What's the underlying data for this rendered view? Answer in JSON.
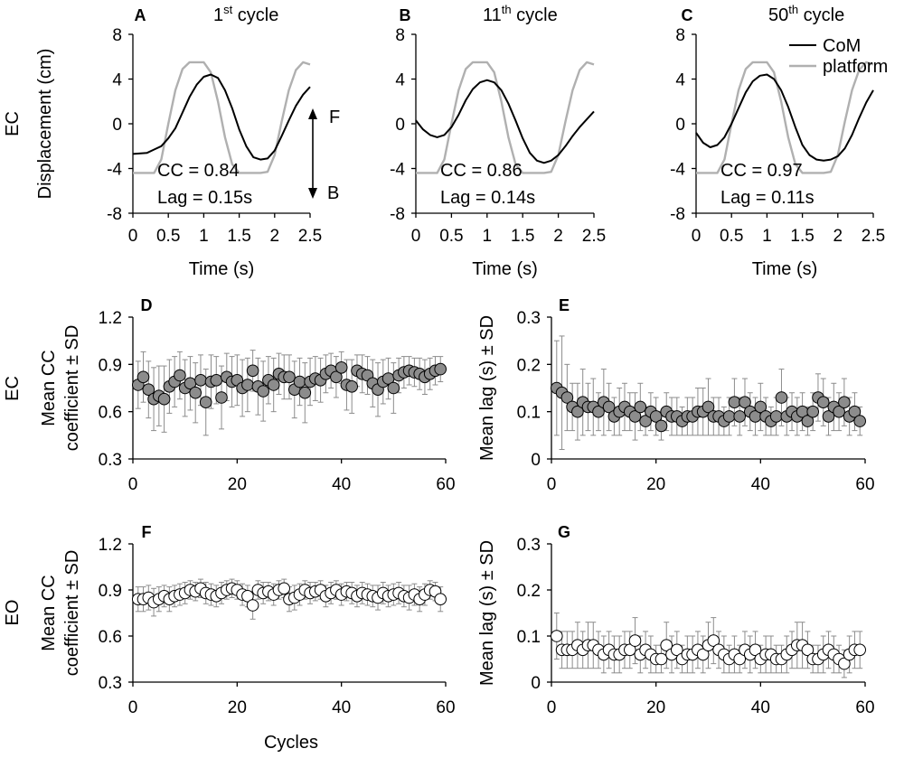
{
  "colors": {
    "com": "#000000",
    "platform": "#b0b0b0",
    "ec_marker": "#8c8c8c",
    "eo_marker": "#ffffff",
    "marker_edge": "#000000",
    "error_bar": "#8c8c8c"
  },
  "row_labels": {
    "ec": "EC",
    "eo": "EO"
  },
  "chart_data": [
    {
      "type": "line",
      "panel": "A",
      "title_prefix": "1",
      "title_sup": "st",
      "title_suffix": " cycle",
      "xlabel": "Time (s)",
      "ylabel": "Displacement (cm)",
      "xlim": [
        0,
        2.5
      ],
      "ylim": [
        -8,
        8
      ],
      "xticks": [
        "0",
        "0.5",
        "1",
        "1.5",
        "2",
        "2.5"
      ],
      "yticks": [
        "8",
        "4",
        "0",
        "-4",
        "-8"
      ],
      "annotations": [
        "CC = 0.84",
        "Lag = 0.15s"
      ],
      "arrow_labels": {
        "forward": "F",
        "backward": "B"
      },
      "series": [
        {
          "name": "platform",
          "x": [
            0,
            0.15,
            0.3,
            0.4,
            0.5,
            0.6,
            0.7,
            0.8,
            0.9,
            1.0,
            1.1,
            1.2,
            1.3,
            1.4,
            1.5,
            1.6,
            1.7,
            1.8,
            1.9,
            2.0,
            2.1,
            2.2,
            2.3,
            2.4,
            2.5
          ],
          "y": [
            -4.4,
            -4.4,
            -4.4,
            -3.2,
            0,
            3.0,
            4.9,
            5.5,
            5.5,
            5.5,
            4.6,
            2.0,
            -1.2,
            -3.6,
            -4.4,
            -4.4,
            -4.4,
            -4.4,
            -4.3,
            -2.8,
            0.2,
            3.0,
            4.8,
            5.5,
            5.3
          ]
        },
        {
          "name": "CoM",
          "x": [
            0,
            0.2,
            0.3,
            0.4,
            0.5,
            0.6,
            0.7,
            0.8,
            0.9,
            1.0,
            1.1,
            1.2,
            1.3,
            1.4,
            1.5,
            1.6,
            1.7,
            1.8,
            1.9,
            2.0,
            2.1,
            2.2,
            2.3,
            2.4,
            2.5
          ],
          "y": [
            -2.7,
            -2.6,
            -2.3,
            -2.0,
            -1.3,
            -0.4,
            1.0,
            2.4,
            3.5,
            4.2,
            4.4,
            4.1,
            3.0,
            1.4,
            -0.5,
            -2.0,
            -3.0,
            -3.2,
            -3.1,
            -2.4,
            -1.1,
            0.3,
            1.6,
            2.6,
            3.3
          ]
        }
      ]
    },
    {
      "type": "line",
      "panel": "B",
      "title_prefix": "11",
      "title_sup": "th",
      "title_suffix": " cycle",
      "xlabel": "Time (s)",
      "xlim": [
        0,
        2.5
      ],
      "ylim": [
        -8,
        8
      ],
      "xticks": [
        "0",
        "0.5",
        "1",
        "1.5",
        "2",
        "2.5"
      ],
      "yticks": [
        "8",
        "4",
        "0",
        "-4",
        "-8"
      ],
      "annotations": [
        "CC = 0.86",
        "Lag = 0.14s"
      ],
      "series": [
        {
          "name": "platform",
          "x": [
            0,
            0.15,
            0.3,
            0.4,
            0.5,
            0.6,
            0.7,
            0.8,
            0.9,
            1.0,
            1.1,
            1.2,
            1.3,
            1.4,
            1.5,
            1.6,
            1.7,
            1.8,
            1.9,
            2.0,
            2.1,
            2.2,
            2.3,
            2.4,
            2.5
          ],
          "y": [
            -4.4,
            -4.4,
            -4.4,
            -3.2,
            0,
            3.0,
            4.9,
            5.5,
            5.5,
            5.5,
            4.6,
            2.0,
            -1.2,
            -3.6,
            -4.4,
            -4.4,
            -4.4,
            -4.4,
            -4.3,
            -2.8,
            0.2,
            3.0,
            4.8,
            5.5,
            5.3
          ]
        },
        {
          "name": "CoM",
          "x": [
            0,
            0.1,
            0.2,
            0.3,
            0.4,
            0.5,
            0.6,
            0.7,
            0.8,
            0.9,
            1.0,
            1.1,
            1.2,
            1.3,
            1.4,
            1.5,
            1.6,
            1.7,
            1.8,
            1.9,
            2.0,
            2.1,
            2.2,
            2.3,
            2.4,
            2.5
          ],
          "y": [
            0.3,
            -0.5,
            -1.0,
            -1.2,
            -1.0,
            -0.3,
            0.8,
            2.1,
            3.1,
            3.7,
            3.9,
            3.7,
            3.0,
            1.8,
            0.3,
            -1.3,
            -2.6,
            -3.3,
            -3.5,
            -3.3,
            -2.8,
            -2.0,
            -1.1,
            -0.3,
            0.4,
            1.1
          ]
        }
      ]
    },
    {
      "type": "line",
      "panel": "C",
      "title_prefix": "50",
      "title_sup": "th",
      "title_suffix": " cycle",
      "xlabel": "Time (s)",
      "xlim": [
        0,
        2.5
      ],
      "ylim": [
        -8,
        8
      ],
      "xticks": [
        "0",
        "0.5",
        "1",
        "1.5",
        "2",
        "2.5"
      ],
      "yticks": [
        "8",
        "4",
        "0",
        "-4",
        "-8"
      ],
      "annotations": [
        "CC = 0.97",
        "Lag = 0.11s"
      ],
      "legend": [
        "CoM",
        "platform"
      ],
      "series": [
        {
          "name": "platform",
          "x": [
            0,
            0.15,
            0.3,
            0.4,
            0.5,
            0.6,
            0.7,
            0.8,
            0.9,
            1.0,
            1.1,
            1.2,
            1.3,
            1.4,
            1.5,
            1.6,
            1.7,
            1.8,
            1.9,
            2.0,
            2.1,
            2.2,
            2.3,
            2.4,
            2.5
          ],
          "y": [
            -4.4,
            -4.4,
            -4.4,
            -3.2,
            0,
            3.0,
            4.9,
            5.5,
            5.5,
            5.5,
            4.6,
            2.0,
            -1.2,
            -3.6,
            -4.4,
            -4.4,
            -4.4,
            -4.4,
            -4.3,
            -2.8,
            0.2,
            3.0,
            4.8,
            5.5,
            5.3
          ]
        },
        {
          "name": "CoM",
          "x": [
            0,
            0.1,
            0.2,
            0.3,
            0.4,
            0.5,
            0.6,
            0.7,
            0.8,
            0.9,
            1.0,
            1.1,
            1.2,
            1.3,
            1.4,
            1.5,
            1.6,
            1.7,
            1.8,
            1.9,
            2.0,
            2.1,
            2.2,
            2.3,
            2.4,
            2.5
          ],
          "y": [
            -0.8,
            -1.7,
            -2.1,
            -1.9,
            -1.2,
            0,
            1.4,
            2.8,
            3.8,
            4.3,
            4.4,
            4.0,
            3.0,
            1.5,
            -0.3,
            -1.9,
            -2.8,
            -3.2,
            -3.3,
            -3.2,
            -2.9,
            -2.2,
            -1.0,
            0.5,
            1.9,
            3.0
          ]
        }
      ]
    },
    {
      "type": "scatter",
      "panel": "D",
      "ylabel_lines": [
        "Mean CC",
        "coefficient ± SD"
      ],
      "xlim": [
        0,
        60
      ],
      "ylim": [
        0.3,
        1.2
      ],
      "xticks": [
        "0",
        "20",
        "40",
        "60"
      ],
      "yticks": [
        "1.2",
        "0.9",
        "0.6",
        "0.3"
      ],
      "x": [
        1,
        2,
        3,
        4,
        5,
        6,
        7,
        8,
        9,
        10,
        11,
        12,
        13,
        14,
        15,
        16,
        17,
        18,
        19,
        20,
        21,
        22,
        23,
        24,
        25,
        26,
        27,
        28,
        29,
        30,
        31,
        32,
        33,
        34,
        35,
        36,
        37,
        38,
        39,
        40,
        41,
        42,
        43,
        44,
        45,
        46,
        47,
        48,
        49,
        50,
        51,
        52,
        53,
        54,
        55,
        56,
        57,
        58,
        59
      ],
      "y": [
        0.77,
        0.82,
        0.74,
        0.68,
        0.7,
        0.68,
        0.76,
        0.79,
        0.83,
        0.75,
        0.78,
        0.72,
        0.8,
        0.66,
        0.79,
        0.8,
        0.69,
        0.82,
        0.79,
        0.8,
        0.75,
        0.77,
        0.86,
        0.76,
        0.73,
        0.8,
        0.77,
        0.84,
        0.82,
        0.82,
        0.74,
        0.79,
        0.72,
        0.79,
        0.81,
        0.8,
        0.84,
        0.86,
        0.82,
        0.88,
        0.77,
        0.76,
        0.86,
        0.84,
        0.83,
        0.78,
        0.74,
        0.79,
        0.81,
        0.75,
        0.83,
        0.85,
        0.86,
        0.85,
        0.84,
        0.82,
        0.84,
        0.86,
        0.87
      ],
      "sd": [
        0.15,
        0.16,
        0.18,
        0.2,
        0.19,
        0.21,
        0.17,
        0.16,
        0.15,
        0.18,
        0.17,
        0.19,
        0.16,
        0.21,
        0.17,
        0.15,
        0.2,
        0.15,
        0.16,
        0.16,
        0.18,
        0.17,
        0.13,
        0.18,
        0.19,
        0.15,
        0.17,
        0.13,
        0.14,
        0.14,
        0.18,
        0.15,
        0.19,
        0.15,
        0.14,
        0.14,
        0.12,
        0.11,
        0.13,
        0.1,
        0.16,
        0.17,
        0.1,
        0.12,
        0.12,
        0.15,
        0.17,
        0.14,
        0.13,
        0.16,
        0.11,
        0.1,
        0.09,
        0.09,
        0.1,
        0.11,
        0.1,
        0.09,
        0.08
      ]
    },
    {
      "type": "scatter",
      "panel": "E",
      "ylabel": "Mean lag (s) ± SD",
      "xlim": [
        0,
        60
      ],
      "ylim": [
        0,
        0.3
      ],
      "xticks": [
        "0",
        "20",
        "40",
        "60"
      ],
      "yticks": [
        "0.3",
        "0.2",
        "0.1",
        "0"
      ],
      "x": [
        1,
        2,
        3,
        4,
        5,
        6,
        7,
        8,
        9,
        10,
        11,
        12,
        13,
        14,
        15,
        16,
        17,
        18,
        19,
        20,
        21,
        22,
        23,
        24,
        25,
        26,
        27,
        28,
        29,
        30,
        31,
        32,
        33,
        34,
        35,
        36,
        37,
        38,
        39,
        40,
        41,
        42,
        43,
        44,
        45,
        46,
        47,
        48,
        49,
        50,
        51,
        52,
        53,
        54,
        55,
        56,
        57,
        58,
        59
      ],
      "y": [
        0.15,
        0.14,
        0.13,
        0.11,
        0.1,
        0.12,
        0.11,
        0.11,
        0.1,
        0.12,
        0.11,
        0.09,
        0.1,
        0.11,
        0.1,
        0.09,
        0.11,
        0.08,
        0.1,
        0.09,
        0.07,
        0.1,
        0.09,
        0.09,
        0.08,
        0.09,
        0.09,
        0.1,
        0.1,
        0.11,
        0.09,
        0.09,
        0.08,
        0.09,
        0.12,
        0.09,
        0.12,
        0.1,
        0.09,
        0.11,
        0.09,
        0.08,
        0.09,
        0.13,
        0.09,
        0.1,
        0.09,
        0.1,
        0.08,
        0.1,
        0.13,
        0.12,
        0.09,
        0.11,
        0.1,
        0.12,
        0.09,
        0.1,
        0.08
      ],
      "sd": [
        0.1,
        0.12,
        0.07,
        0.05,
        0.06,
        0.07,
        0.05,
        0.06,
        0.04,
        0.07,
        0.05,
        0.04,
        0.05,
        0.05,
        0.04,
        0.05,
        0.05,
        0.03,
        0.04,
        0.04,
        0.03,
        0.04,
        0.04,
        0.04,
        0.03,
        0.04,
        0.04,
        0.05,
        0.05,
        0.06,
        0.04,
        0.04,
        0.03,
        0.04,
        0.05,
        0.04,
        0.05,
        0.04,
        0.04,
        0.05,
        0.04,
        0.03,
        0.04,
        0.06,
        0.04,
        0.04,
        0.04,
        0.04,
        0.03,
        0.04,
        0.05,
        0.05,
        0.04,
        0.05,
        0.04,
        0.05,
        0.04,
        0.04,
        0.03
      ]
    },
    {
      "type": "scatter",
      "panel": "F",
      "ylabel_lines": [
        "Mean CC",
        "coefficient ± SD"
      ],
      "xlabel": "Cycles",
      "xlim": [
        0,
        60
      ],
      "ylim": [
        0.3,
        1.2
      ],
      "xticks": [
        "0",
        "20",
        "40",
        "60"
      ],
      "yticks": [
        "1.2",
        "0.9",
        "0.6",
        "0.3"
      ],
      "x": [
        1,
        2,
        3,
        4,
        5,
        6,
        7,
        8,
        9,
        10,
        11,
        12,
        13,
        14,
        15,
        16,
        17,
        18,
        19,
        20,
        21,
        22,
        23,
        24,
        25,
        26,
        27,
        28,
        29,
        30,
        31,
        32,
        33,
        34,
        35,
        36,
        37,
        38,
        39,
        40,
        41,
        42,
        43,
        44,
        45,
        46,
        47,
        48,
        49,
        50,
        51,
        52,
        53,
        54,
        55,
        56,
        57,
        58,
        59
      ],
      "y": [
        0.84,
        0.84,
        0.85,
        0.82,
        0.84,
        0.86,
        0.84,
        0.86,
        0.87,
        0.88,
        0.9,
        0.89,
        0.91,
        0.88,
        0.87,
        0.86,
        0.88,
        0.9,
        0.91,
        0.9,
        0.87,
        0.86,
        0.8,
        0.9,
        0.88,
        0.89,
        0.87,
        0.9,
        0.91,
        0.84,
        0.85,
        0.87,
        0.9,
        0.88,
        0.89,
        0.9,
        0.86,
        0.88,
        0.9,
        0.87,
        0.89,
        0.88,
        0.86,
        0.88,
        0.87,
        0.86,
        0.85,
        0.88,
        0.86,
        0.87,
        0.88,
        0.86,
        0.85,
        0.87,
        0.84,
        0.87,
        0.9,
        0.89,
        0.84
      ],
      "sd": [
        0.08,
        0.08,
        0.08,
        0.09,
        0.08,
        0.07,
        0.08,
        0.07,
        0.07,
        0.07,
        0.06,
        0.06,
        0.06,
        0.07,
        0.07,
        0.07,
        0.07,
        0.06,
        0.06,
        0.06,
        0.07,
        0.07,
        0.09,
        0.06,
        0.07,
        0.06,
        0.07,
        0.06,
        0.06,
        0.08,
        0.08,
        0.07,
        0.06,
        0.07,
        0.06,
        0.06,
        0.07,
        0.07,
        0.06,
        0.07,
        0.06,
        0.07,
        0.07,
        0.07,
        0.07,
        0.07,
        0.08,
        0.07,
        0.07,
        0.07,
        0.07,
        0.07,
        0.08,
        0.07,
        0.08,
        0.07,
        0.06,
        0.06,
        0.08
      ]
    },
    {
      "type": "scatter",
      "panel": "G",
      "ylabel": "Mean lag (s) ± SD",
      "xlim": [
        0,
        60
      ],
      "ylim": [
        0,
        0.3
      ],
      "xticks": [
        "0",
        "20",
        "40",
        "60"
      ],
      "yticks": [
        "0.3",
        "0.2",
        "0.1",
        "0"
      ],
      "x": [
        1,
        2,
        3,
        4,
        5,
        6,
        7,
        8,
        9,
        10,
        11,
        12,
        13,
        14,
        15,
        16,
        17,
        18,
        19,
        20,
        21,
        22,
        23,
        24,
        25,
        26,
        27,
        28,
        29,
        30,
        31,
        32,
        33,
        34,
        35,
        36,
        37,
        38,
        39,
        40,
        41,
        42,
        43,
        44,
        45,
        46,
        47,
        48,
        49,
        50,
        51,
        52,
        53,
        54,
        55,
        56,
        57,
        58,
        59
      ],
      "y": [
        0.1,
        0.07,
        0.07,
        0.07,
        0.08,
        0.07,
        0.08,
        0.08,
        0.07,
        0.06,
        0.07,
        0.06,
        0.06,
        0.07,
        0.07,
        0.09,
        0.06,
        0.07,
        0.06,
        0.05,
        0.05,
        0.08,
        0.06,
        0.07,
        0.05,
        0.06,
        0.06,
        0.07,
        0.06,
        0.08,
        0.09,
        0.07,
        0.06,
        0.05,
        0.06,
        0.05,
        0.07,
        0.06,
        0.07,
        0.05,
        0.06,
        0.06,
        0.05,
        0.05,
        0.06,
        0.07,
        0.08,
        0.08,
        0.07,
        0.05,
        0.05,
        0.06,
        0.07,
        0.06,
        0.05,
        0.04,
        0.06,
        0.07,
        0.07
      ],
      "sd": [
        0.05,
        0.04,
        0.04,
        0.04,
        0.05,
        0.04,
        0.05,
        0.05,
        0.04,
        0.04,
        0.04,
        0.04,
        0.04,
        0.04,
        0.04,
        0.05,
        0.04,
        0.04,
        0.04,
        0.03,
        0.03,
        0.05,
        0.04,
        0.04,
        0.03,
        0.04,
        0.04,
        0.04,
        0.04,
        0.05,
        0.05,
        0.04,
        0.04,
        0.03,
        0.04,
        0.03,
        0.04,
        0.04,
        0.04,
        0.03,
        0.04,
        0.04,
        0.03,
        0.03,
        0.04,
        0.04,
        0.05,
        0.05,
        0.04,
        0.03,
        0.03,
        0.04,
        0.04,
        0.04,
        0.03,
        0.03,
        0.04,
        0.04,
        0.04
      ]
    }
  ]
}
